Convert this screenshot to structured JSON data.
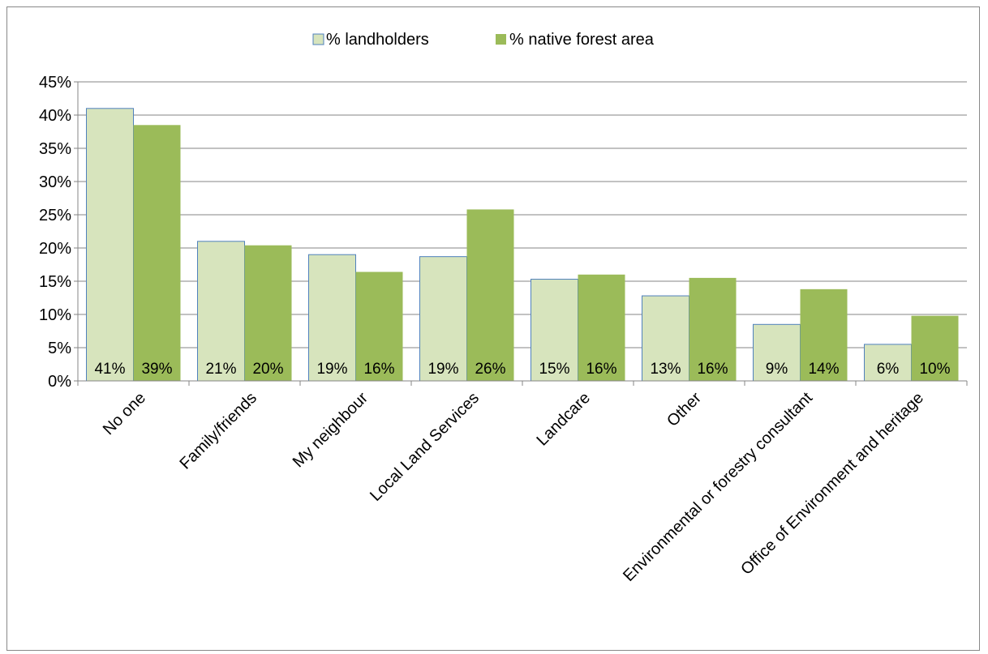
{
  "chart_data": {
    "type": "bar",
    "categories": [
      "No one",
      "Family/friends",
      "My neighbour",
      "Local Land Services",
      "Landcare",
      "Other",
      "Environmental or forestry consultant",
      "Office of Environment and heritage"
    ],
    "series": [
      {
        "name": "% landholders",
        "values": [
          41,
          21,
          19,
          18.7,
          15.3,
          12.8,
          8.5,
          5.5
        ],
        "labels": [
          "41%",
          "21%",
          "19%",
          "19%",
          "15%",
          "13%",
          "9%",
          "6%"
        ],
        "color": "#d7e4bd",
        "border": "#4f81bd"
      },
      {
        "name": "% native forest area",
        "values": [
          38.5,
          20.4,
          16.4,
          25.8,
          16,
          15.5,
          13.8,
          9.8
        ],
        "labels": [
          "39%",
          "20%",
          "16%",
          "26%",
          "16%",
          "16%",
          "14%",
          "10%"
        ],
        "color": "#9bbb59"
      }
    ],
    "ylim": [
      0,
      45
    ],
    "y_ticks": [
      "0%",
      "5%",
      "10%",
      "15%",
      "20%",
      "25%",
      "30%",
      "35%",
      "40%",
      "45%"
    ],
    "grid": "horizontal",
    "legend_position": "top-center"
  }
}
